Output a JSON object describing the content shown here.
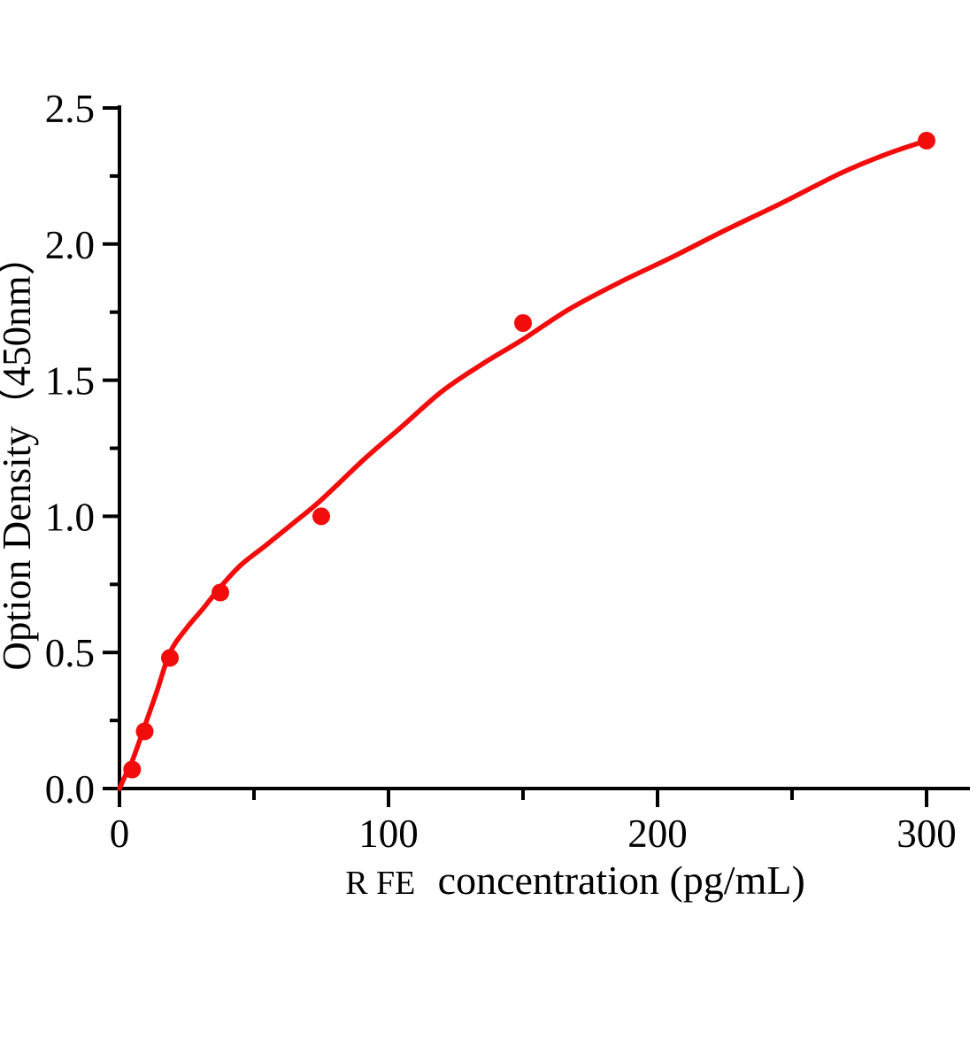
{
  "figure": {
    "background_color": "#ffffff",
    "axis_color": "#000000",
    "accent_color": "#f20c0c"
  },
  "chart_data": {
    "type": "scatter",
    "title": "",
    "xlabel_prefix": "R FE",
    "xlabel_main": "concentration (pg/mL)",
    "ylabel": "Option Density（450nm）",
    "xlim": [
      0,
      316
    ],
    "ylim": [
      0,
      2.5
    ],
    "x_axis": {
      "major_ticks": [
        0,
        100,
        200,
        300
      ],
      "major_tick_labels": [
        "0",
        "100",
        "200",
        "300"
      ],
      "minor_ticks": [
        50,
        150,
        250
      ]
    },
    "y_axis": {
      "major_ticks": [
        0.0,
        0.5,
        1.0,
        1.5,
        2.0,
        2.5
      ],
      "major_tick_labels": [
        "0.0",
        "0.5",
        "1.0",
        "1.5",
        "2.0",
        "2.5"
      ],
      "minor_ticks": [
        0.25,
        0.75,
        1.25,
        1.75,
        2.25
      ]
    },
    "grid": "off",
    "legend": "none",
    "series": [
      {
        "name": "standard-points",
        "marker": "circle",
        "color": "#f20c0c",
        "points": [
          {
            "x": 4.69,
            "y": 0.07
          },
          {
            "x": 9.38,
            "y": 0.21
          },
          {
            "x": 18.75,
            "y": 0.48
          },
          {
            "x": 37.5,
            "y": 0.72
          },
          {
            "x": 75,
            "y": 1.0
          },
          {
            "x": 150,
            "y": 1.71
          },
          {
            "x": 300,
            "y": 2.38
          }
        ]
      }
    ],
    "fit_curve": {
      "name": "fitted-standard-curve",
      "color": "#f20c0c",
      "samples": [
        [
          0,
          0
        ],
        [
          2.3,
          0.05
        ],
        [
          4.7,
          0.1
        ],
        [
          9.4,
          0.23
        ],
        [
          14,
          0.36
        ],
        [
          18.8,
          0.5
        ],
        [
          25,
          0.59
        ],
        [
          31,
          0.66
        ],
        [
          37.5,
          0.74
        ],
        [
          45,
          0.82
        ],
        [
          54,
          0.89
        ],
        [
          64,
          0.97
        ],
        [
          75,
          1.06
        ],
        [
          91,
          1.21
        ],
        [
          105,
          1.33
        ],
        [
          120,
          1.46
        ],
        [
          135,
          1.56
        ],
        [
          150,
          1.65
        ],
        [
          167,
          1.76
        ],
        [
          186,
          1.86
        ],
        [
          205,
          1.95
        ],
        [
          225,
          2.05
        ],
        [
          246,
          2.15
        ],
        [
          268,
          2.26
        ],
        [
          285,
          2.33
        ],
        [
          300,
          2.38
        ]
      ]
    }
  }
}
